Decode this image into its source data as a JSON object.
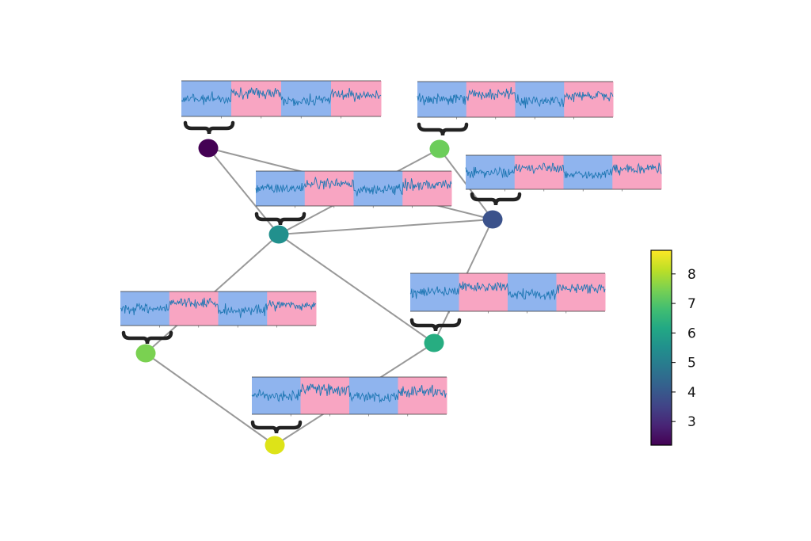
{
  "chart_data": {
    "type": "graph",
    "nodes": [
      {
        "id": "n1",
        "value": 2.2,
        "color": "#440154"
      },
      {
        "id": "n2",
        "value": 7.3,
        "color": "#6ccd5a"
      },
      {
        "id": "n3",
        "value": 4.1,
        "color": "#3b528b"
      },
      {
        "id": "n4",
        "value": 5.1,
        "color": "#21908d"
      },
      {
        "id": "n5",
        "value": 6.2,
        "color": "#27ad81"
      },
      {
        "id": "n6",
        "value": 7.5,
        "color": "#7ad151"
      },
      {
        "id": "n7",
        "value": 8.8,
        "color": "#dde318"
      }
    ],
    "edges": [
      [
        "n1",
        "n4"
      ],
      [
        "n1",
        "n3"
      ],
      [
        "n2",
        "n4"
      ],
      [
        "n2",
        "n3"
      ],
      [
        "n4",
        "n3"
      ],
      [
        "n4",
        "n6"
      ],
      [
        "n4",
        "n5"
      ],
      [
        "n3",
        "n5"
      ],
      [
        "n6",
        "n7"
      ],
      [
        "n5",
        "n7"
      ]
    ],
    "segment_colors": [
      "#8fb4ee",
      "#f8a5c2"
    ],
    "signal_color": "#1f77b4",
    "edge_color": "#999999",
    "colorbar": {
      "colormap": "viridis",
      "range": [
        2.2,
        8.8
      ],
      "ticks": [
        3,
        4,
        5,
        6,
        7,
        8
      ],
      "tick_labels": [
        "3",
        "4",
        "5",
        "6",
        "7",
        "8"
      ]
    }
  }
}
